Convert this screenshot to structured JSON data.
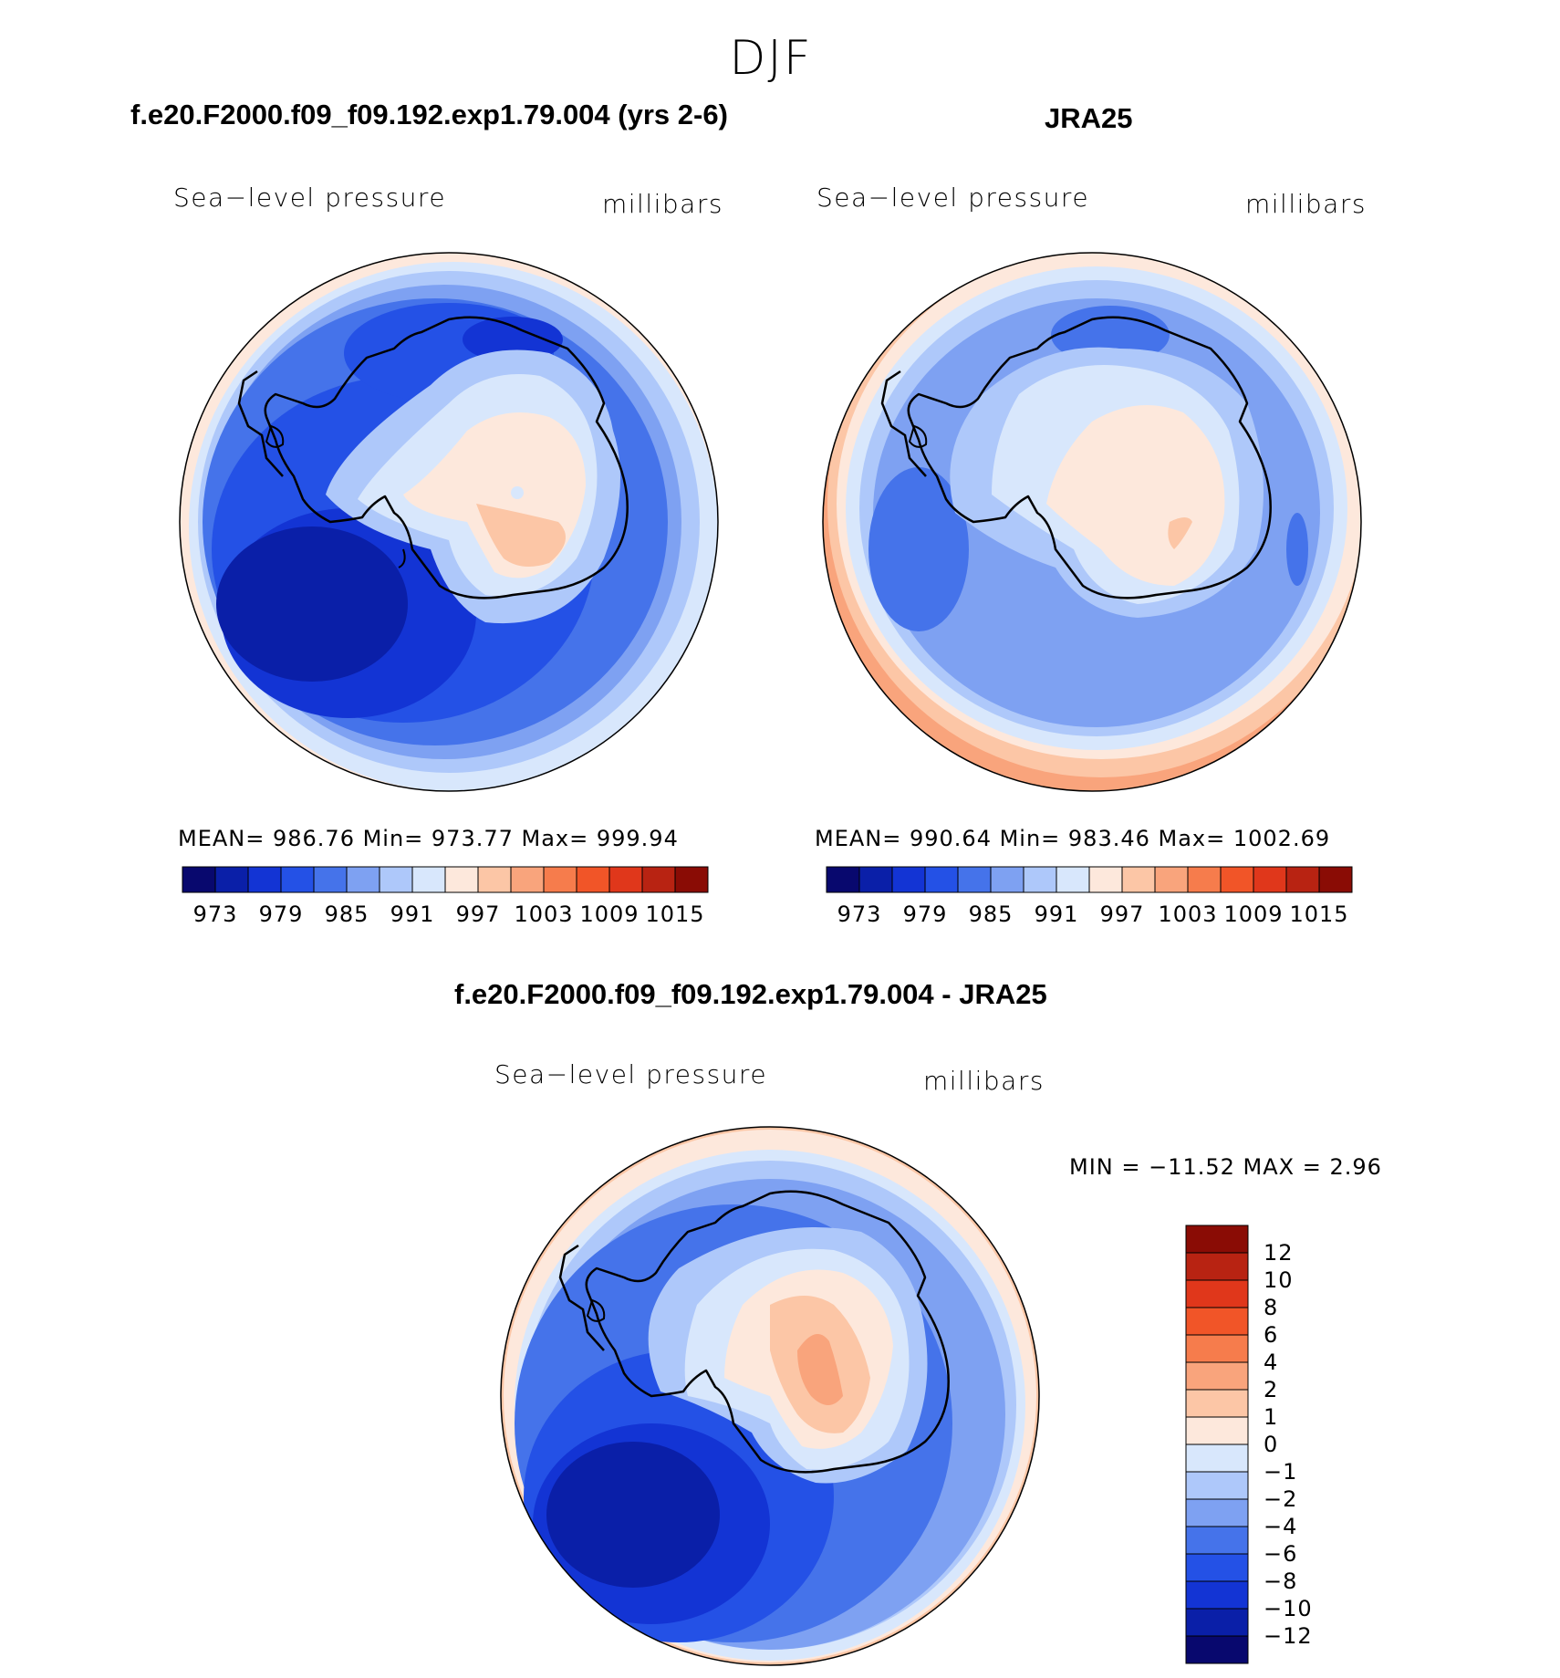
{
  "figure": {
    "title": "DJF"
  },
  "colors": {
    "abs_scale": [
      "#08086e",
      "#0a1fa8",
      "#1334d4",
      "#2451e6",
      "#4573ea",
      "#7ea1f2",
      "#aec8fa",
      "#d8e7fc",
      "#fde8dc",
      "#fcc6a6",
      "#f9a47c",
      "#f67c4c",
      "#f15528",
      "#e0371b",
      "#b82312",
      "#8a0c05"
    ],
    "diff_scale": [
      "#08086e",
      "#0a1fa8",
      "#1334d4",
      "#2451e6",
      "#4573ea",
      "#7ea1f2",
      "#aec8fa",
      "#d8e7fc",
      "#fde8dc",
      "#fcc6a6",
      "#f9a47c",
      "#f67c4c",
      "#f15528",
      "#e0371b",
      "#b82312",
      "#8a0c05"
    ]
  },
  "panels": [
    {
      "title": "f.e20.F2000.f09_f09.192.exp1.79.004 (yrs 2-6)",
      "left_label": "Sea−level pressure",
      "right_label": "millibars",
      "stats": "MEAN= 986.76   Min= 973.77   Max= 999.94",
      "ticks": [
        "973",
        "979",
        "985",
        "991",
        "997",
        "1003",
        "1009",
        "1015"
      ]
    },
    {
      "title": "JRA25",
      "left_label": "Sea−level pressure",
      "right_label": "millibars",
      "stats": "MEAN= 990.64   Min= 983.46   Max= 1002.69",
      "ticks": [
        "973",
        "979",
        "985",
        "991",
        "997",
        "1003",
        "1009",
        "1015"
      ]
    },
    {
      "title": "f.e20.F2000.f09_f09.192.exp1.79.004 - JRA25",
      "left_label": "Sea−level pressure",
      "right_label": "millibars",
      "stats": "MIN = −11.52 MAX =    2.96",
      "ticks": [
        "12",
        "10",
        "8",
        "6",
        "4",
        "2",
        "1",
        "0",
        "−1",
        "−2",
        "−4",
        "−6",
        "−8",
        "−10",
        "−12"
      ]
    }
  ],
  "chart_data": [
    {
      "type": "heatmap",
      "projection": "south polar stereographic",
      "variable": "Sea-level pressure",
      "units": "millibars",
      "mean": 986.76,
      "min": 973.77,
      "max": 999.94,
      "levels": [
        973,
        976,
        979,
        982,
        985,
        988,
        991,
        994,
        997,
        1000,
        1003,
        1006,
        1009,
        1012,
        1015
      ]
    },
    {
      "type": "heatmap",
      "projection": "south polar stereographic",
      "variable": "Sea-level pressure",
      "units": "millibars",
      "mean": 990.64,
      "min": 983.46,
      "max": 1002.69,
      "levels": [
        973,
        976,
        979,
        982,
        985,
        988,
        991,
        994,
        997,
        1000,
        1003,
        1006,
        1009,
        1012,
        1015
      ]
    },
    {
      "type": "heatmap",
      "projection": "south polar stereographic",
      "variable": "Sea-level pressure",
      "units": "millibars",
      "min": -11.52,
      "max": 2.96,
      "levels": [
        -12,
        -10,
        -8,
        -6,
        -4,
        -2,
        -1,
        0,
        1,
        2,
        4,
        6,
        8,
        10,
        12
      ]
    }
  ]
}
